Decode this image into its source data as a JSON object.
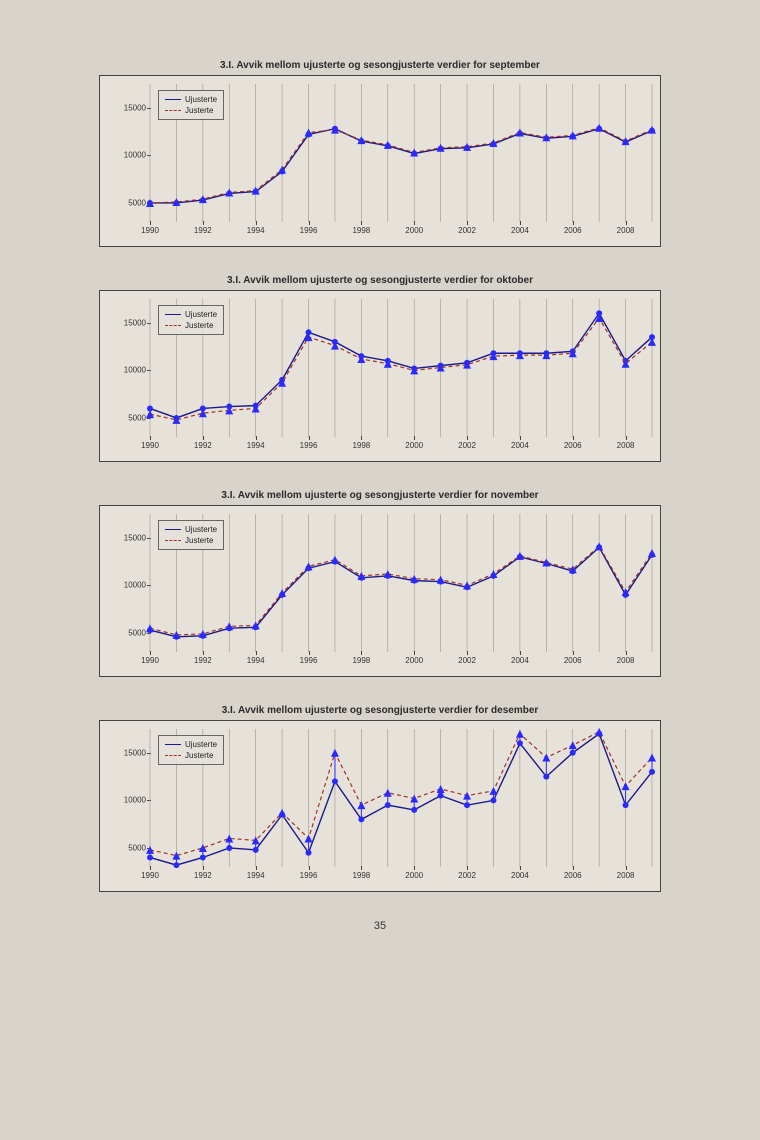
{
  "page_number": "35",
  "background_color": "#d8d4cc",
  "panel_bg": "#e6e2da",
  "border_color": "#444444",
  "grid_color": "#9a9690",
  "axis_fontsize": 8,
  "title_fontsize": 10,
  "legend": {
    "series1": "Ujusterte",
    "series2": "Justerte"
  },
  "series_style": {
    "ujusterte": {
      "color": "#1a1a8a",
      "dash": "none",
      "width": 1.4,
      "marker": "circle",
      "marker_color": "#2a2aff",
      "marker_size": 3
    },
    "justerte": {
      "color": "#a03020",
      "dash": "4,3",
      "width": 1.2,
      "marker": "triangle",
      "marker_color": "#2a2aff",
      "marker_size": 4
    }
  },
  "x": {
    "values": [
      1990,
      1991,
      1992,
      1993,
      1994,
      1995,
      1996,
      1997,
      1998,
      1999,
      2000,
      2001,
      2002,
      2003,
      2004,
      2005,
      2006,
      2007,
      2008,
      2009
    ],
    "ticks": [
      1990,
      1992,
      1994,
      1996,
      1998,
      2000,
      2002,
      2004,
      2006,
      2008
    ],
    "min": 1990,
    "max": 2009
  },
  "y": {
    "ticks": [
      5000,
      10000,
      15000
    ],
    "min": 3000,
    "max": 17500
  },
  "charts": [
    {
      "title": "3.I. Avvik mellom ujusterte og sesongjusterte verdier for  september",
      "ujusterte": [
        5000,
        5000,
        5300,
        6000,
        6200,
        8300,
        12200,
        12800,
        11500,
        11000,
        10200,
        10700,
        10800,
        11200,
        12300,
        11800,
        12000,
        12800,
        11400,
        12600
      ],
      "justerte": [
        5000,
        5100,
        5400,
        6100,
        6300,
        8500,
        12400,
        12700,
        11600,
        11100,
        10300,
        10800,
        10900,
        11300,
        12400,
        11900,
        12100,
        12900,
        11500,
        12700
      ]
    },
    {
      "title": "3.I. Avvik mellom ujusterte og sesongjusterte verdier for  oktober",
      "ujusterte": [
        6000,
        5000,
        6000,
        6200,
        6300,
        9000,
        14000,
        13000,
        11500,
        11000,
        10200,
        10500,
        10800,
        11800,
        11800,
        11800,
        12000,
        16000,
        11000,
        13500
      ],
      "justerte": [
        5400,
        4800,
        5500,
        5800,
        6000,
        8700,
        13500,
        12600,
        11200,
        10700,
        10000,
        10300,
        10600,
        11500,
        11600,
        11600,
        11800,
        15500,
        10700,
        13000
      ]
    },
    {
      "title": "3.I. Avvik mellom ujusterte og sesongjusterte verdier for  november",
      "ujusterte": [
        5300,
        4600,
        4700,
        5500,
        5600,
        9000,
        11800,
        12500,
        10800,
        11000,
        10500,
        10400,
        9800,
        11000,
        13000,
        12300,
        11500,
        14000,
        9000,
        13200
      ],
      "justerte": [
        5500,
        4800,
        4900,
        5700,
        5800,
        9200,
        12000,
        12700,
        11000,
        11200,
        10700,
        10600,
        10000,
        11200,
        13100,
        12400,
        11700,
        14100,
        9300,
        13400
      ]
    },
    {
      "title": "3.I. Avvik mellom ujusterte og sesongjusterte verdier for  desember",
      "ujusterte": [
        4000,
        3200,
        4000,
        5000,
        4800,
        8500,
        4500,
        12000,
        8000,
        9500,
        9000,
        10500,
        9500,
        10000,
        16000,
        12500,
        15000,
        17000,
        9500,
        13000
      ],
      "justerte": [
        4800,
        4200,
        5000,
        6000,
        5800,
        8700,
        6000,
        15000,
        9500,
        10800,
        10200,
        11200,
        10500,
        11000,
        17000,
        14500,
        15800,
        17200,
        11500,
        14500
      ]
    }
  ]
}
